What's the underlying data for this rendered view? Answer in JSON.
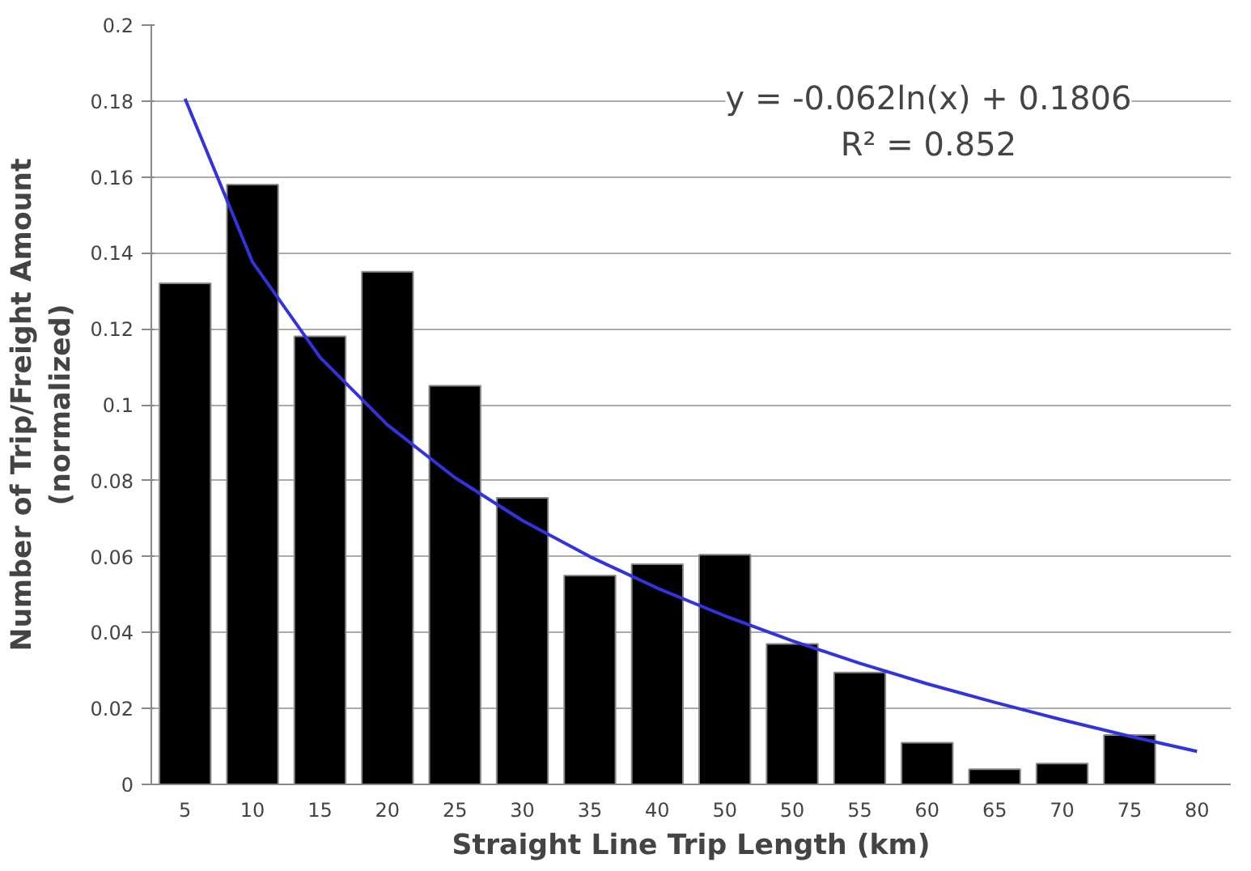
{
  "chart_data": {
    "type": "bar",
    "xlabel": "Straight Line Trip Length (km)",
    "ylabel": "Number of Trip/Freight Amount\n(normalized)",
    "categories": [
      "5",
      "10",
      "15",
      "20",
      "25",
      "30",
      "35",
      "40",
      "50",
      "50",
      "55",
      "60",
      "65",
      "70",
      "75",
      "80"
    ],
    "series": [
      {
        "color": "#000000",
        "values": [
          0.132,
          0.158,
          0.118,
          0.135,
          0.105,
          0.0755,
          0.055,
          0.058,
          0.0605,
          0.037,
          0.0295,
          0.011,
          0.004,
          0.0055,
          0.013,
          null
        ]
      },
      {
        "type": "line",
        "color": "#3333dd",
        "values": [
          0.1806,
          0.1376,
          0.1125,
          0.0947,
          0.0808,
          0.0695,
          0.06,
          0.0517,
          0.0444,
          0.0378,
          0.0319,
          0.0265,
          0.0216,
          0.017,
          0.0127,
          0.0087
        ]
      }
    ],
    "ylim": [
      0,
      0.2
    ],
    "yticks": [
      0,
      0.02,
      0.04,
      0.06,
      0.08,
      0.1,
      0.12,
      0.14,
      0.16,
      0.18,
      0.2
    ],
    "grid": "y",
    "annotations": [
      "y = -0.062ln(x) + 0.1806\nR² = 0.852"
    ]
  }
}
